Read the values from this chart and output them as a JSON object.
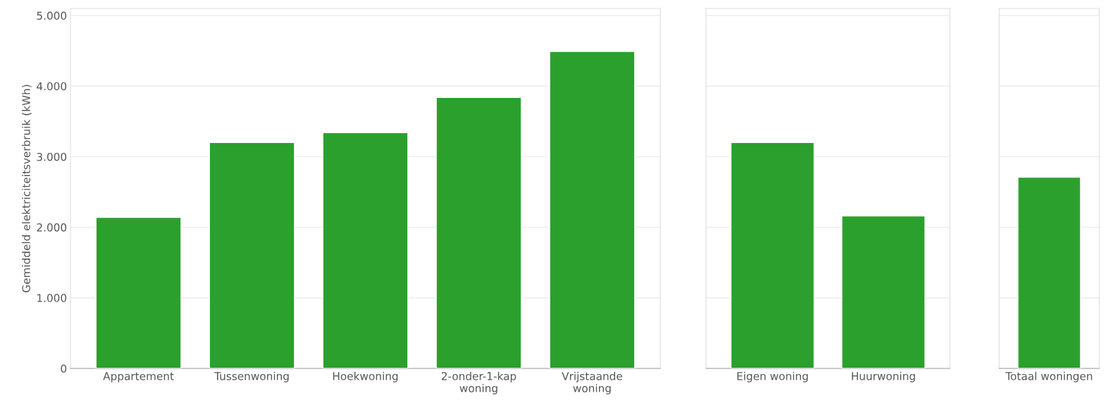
{
  "chart_data": [
    {
      "type": "bar",
      "ylabel": "Gemiddeld elektriciteitsverbruik (kWh)",
      "categories": [
        "Appartement",
        "Tussenwoning",
        "Hoekwoning",
        "2-onder-1-kap\nwoning",
        "Vrijstaande\nwoning"
      ],
      "values": [
        2140,
        3200,
        3340,
        3840,
        4490
      ],
      "color": "#2ca02c",
      "ylim": [
        0,
        5100
      ],
      "yticks": [
        {
          "value": 0,
          "label": "0"
        },
        {
          "value": 1000,
          "label": "1.000"
        },
        {
          "value": 2000,
          "label": "2.000"
        },
        {
          "value": 3000,
          "label": "3.000"
        },
        {
          "value": 4000,
          "label": "4.000"
        },
        {
          "value": 5000,
          "label": "5.000"
        }
      ],
      "grid": "y"
    },
    {
      "type": "bar",
      "categories": [
        "Eigen woning",
        "Huurwoning"
      ],
      "values": [
        3200,
        2160
      ],
      "color": "#2ca02c",
      "ylim": [
        0,
        5100
      ],
      "yticks": [
        {
          "value": 0,
          "label": null
        },
        {
          "value": 1000,
          "label": null
        },
        {
          "value": 2000,
          "label": null
        },
        {
          "value": 3000,
          "label": null
        },
        {
          "value": 4000,
          "label": null
        },
        {
          "value": 5000,
          "label": null
        }
      ],
      "grid": "y",
      "tick_labels": "x"
    },
    {
      "type": "bar",
      "categories": [
        "Totaal woningen"
      ],
      "values": [
        2710
      ],
      "color": "#2ca02c",
      "ylim": [
        0,
        5100
      ],
      "yticks": [
        {
          "value": 0,
          "label": null
        },
        {
          "value": 1000,
          "label": null
        },
        {
          "value": 2000,
          "label": null
        },
        {
          "value": 3000,
          "label": null
        },
        {
          "value": 4000,
          "label": null
        },
        {
          "value": 5000,
          "label": null
        }
      ],
      "grid": "y",
      "tick_labels": "x"
    }
  ]
}
